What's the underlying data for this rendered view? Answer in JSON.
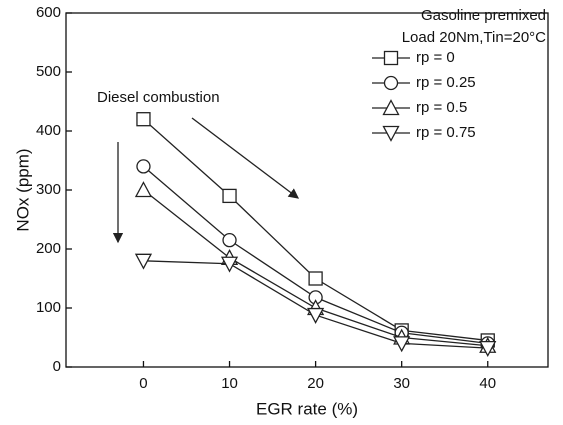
{
  "chart_data": {
    "type": "line",
    "x_label": "EGR rate (%)",
    "y_label": "NOx (ppm)",
    "annotations": [
      "Diesel combustion"
    ],
    "legend_title": [
      "Gasoline premixed",
      "Load 20Nm,Tin=20°C"
    ],
    "legend_position": "upper right",
    "x": [
      0,
      10,
      20,
      30,
      40
    ],
    "series": [
      {
        "name": "rp = 0",
        "color": "#222222",
        "marker": "square",
        "values": [
          420,
          290,
          150,
          62,
          45
        ]
      },
      {
        "name": "rp = 0.25",
        "color": "#222222",
        "marker": "circle",
        "values": [
          340,
          215,
          118,
          58,
          40
        ]
      },
      {
        "name": "rp = 0.5",
        "color": "#222222",
        "marker": "triangle-up",
        "values": [
          300,
          185,
          100,
          50,
          36
        ]
      },
      {
        "name": "rp = 0.75",
        "color": "#222222",
        "marker": "triangle-down",
        "values": [
          180,
          175,
          88,
          40,
          32
        ]
      }
    ],
    "xlim": [
      -9,
      47
    ],
    "xticks": [
      0,
      10,
      20,
      30,
      40
    ],
    "ylim": [
      0,
      600
    ],
    "yticks": [
      0,
      100,
      200,
      300,
      400,
      500,
      600
    ]
  }
}
